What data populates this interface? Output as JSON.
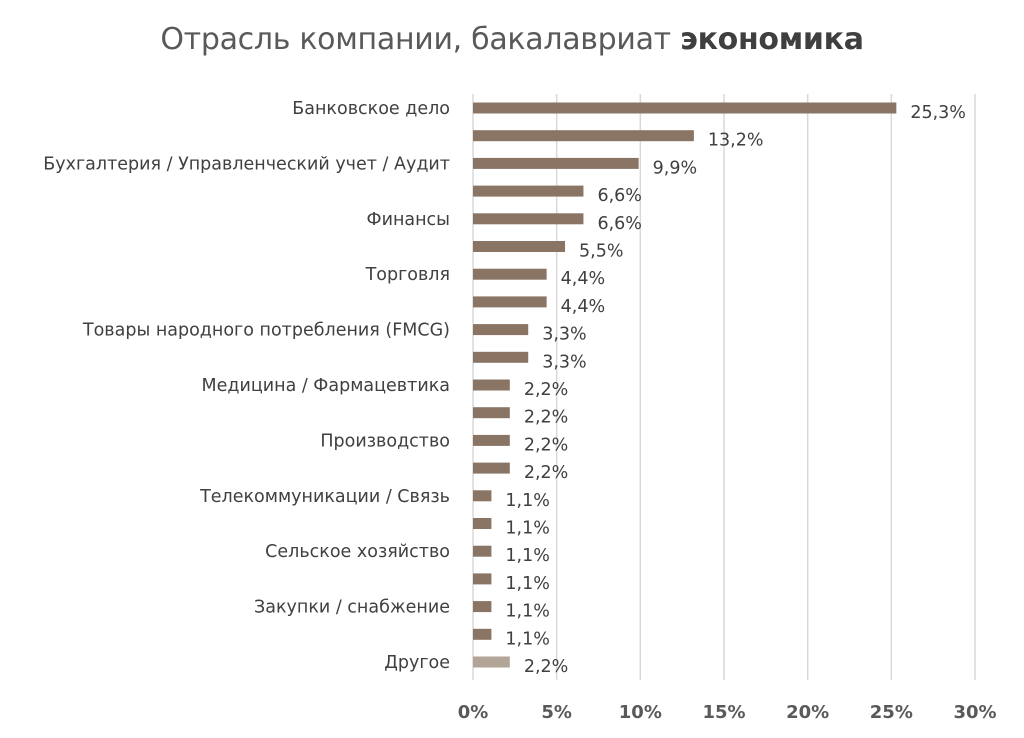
{
  "chart_data": {
    "type": "bar",
    "orientation": "horizontal",
    "title": "Отрасль компании, бакалавриат",
    "title_emphasis": "экономика",
    "xlabel": "",
    "ylabel": "",
    "xlim": [
      0,
      30
    ],
    "grid": "vertical",
    "legend": "none",
    "x_ticks": [
      0,
      5,
      10,
      15,
      20,
      25,
      30
    ],
    "x_tick_labels": [
      "0%",
      "5%",
      "10%",
      "15%",
      "20%",
      "25%",
      "30%"
    ],
    "categories": [
      "Банковское дело",
      "",
      "Бухгалтерия / Управленческий учет / Аудит",
      "",
      "Финансы",
      "",
      "Торговля",
      "",
      "Товары народного потребления (FMCG)",
      "",
      "Медицина / Фармацевтика",
      "",
      "Производство",
      "",
      "Телекоммуникации  /  Связь",
      "",
      "Сельское хозяйство",
      "",
      "Закупки / снабжение",
      "",
      "Другое"
    ],
    "values": [
      25.3,
      13.2,
      9.9,
      6.6,
      6.6,
      5.5,
      4.4,
      4.4,
      3.3,
      3.3,
      2.2,
      2.2,
      2.2,
      2.2,
      1.1,
      1.1,
      1.1,
      1.1,
      1.1,
      1.1,
      2.2
    ],
    "value_labels": [
      "25,3%",
      "13,2%",
      "9,9%",
      "6,6%",
      "6,6%",
      "5,5%",
      "4,4%",
      "4,4%",
      "3,3%",
      "3,3%",
      "2,2%",
      "2,2%",
      "2,2%",
      "2,2%",
      "1,1%",
      "1,1%",
      "1,1%",
      "1,1%",
      "1,1%",
      "1,1%",
      "2,2%"
    ],
    "colors": {
      "bar": "#8a7565",
      "highlight_bar": "#b3a498",
      "grid": "#d9d9d9"
    },
    "highlight_index": 20
  }
}
